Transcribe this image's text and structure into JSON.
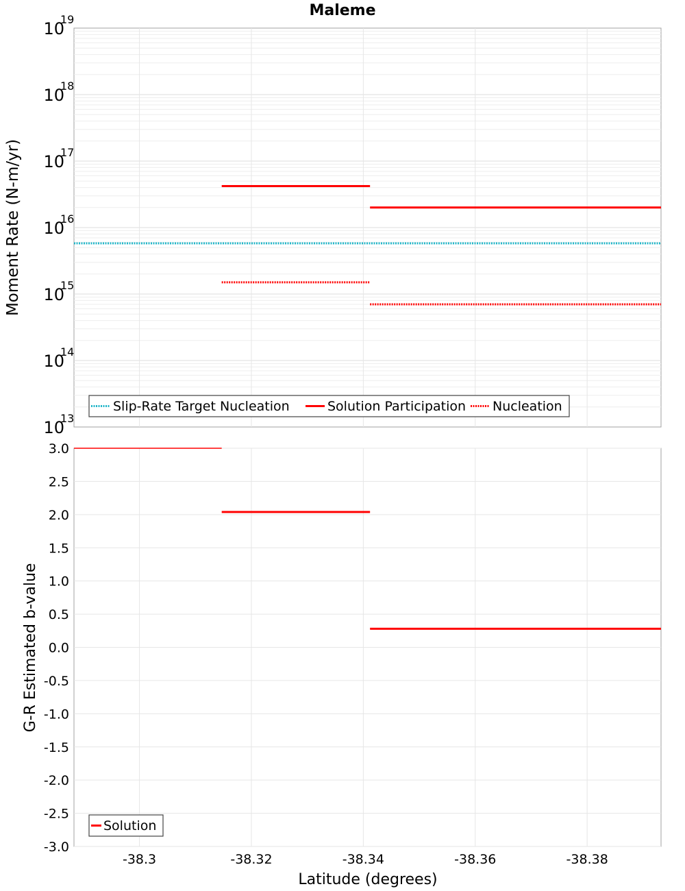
{
  "chart_data": [
    {
      "type": "line",
      "panel": "top",
      "title": "Maleme",
      "xlabel": "Latitude (degrees)",
      "ylabel": "Moment Rate (N-m/yr)",
      "yscale": "log",
      "ylim": [
        10000000000000.0,
        1e+19
      ],
      "xlim": [
        -38.2883,
        -38.3932
      ],
      "y_tick_exponents": [
        13,
        14,
        15,
        16,
        17,
        18,
        19
      ],
      "y_tick_base": "10",
      "grid": true,
      "legend_position": "bottom-left",
      "series": [
        {
          "name": "Slip-Rate Target Nucleation",
          "style": "dotted",
          "color": "#1fb5c8",
          "segments": [
            {
              "x": [
                -38.2883,
                -38.3932
              ],
              "y": 5800000000000000.0
            }
          ]
        },
        {
          "name": "Solution Participation",
          "style": "solid",
          "color": "#ff0000",
          "segments": [
            {
              "x": [
                -38.3147,
                -38.3412
              ],
              "y": 4.2e+16
            },
            {
              "x": [
                -38.3412,
                -38.3932
              ],
              "y": 2e+16
            }
          ]
        },
        {
          "name": "Nucleation",
          "style": "dotted",
          "color": "#ff0000",
          "segments": [
            {
              "x": [
                -38.3147,
                -38.3412
              ],
              "y": 1500000000000000.0
            },
            {
              "x": [
                -38.3412,
                -38.3932
              ],
              "y": 700000000000000.0
            }
          ]
        }
      ]
    },
    {
      "type": "line",
      "panel": "bottom",
      "xlabel": "Latitude (degrees)",
      "ylabel": "G-R Estimated b-value",
      "ylim": [
        -3.0,
        3.0
      ],
      "xlim": [
        -38.2883,
        -38.3932
      ],
      "x_ticks": [
        -38.3,
        -38.32,
        -38.34,
        -38.36,
        -38.38
      ],
      "x_tick_labels": [
        "-38.3",
        "-38.32",
        "-38.34",
        "-38.36",
        "-38.38"
      ],
      "y_ticks": [
        3.0,
        2.5,
        2.0,
        1.5,
        1.0,
        0.5,
        0.0,
        -0.5,
        -1.0,
        -1.5,
        -2.0,
        -2.5,
        -3.0
      ],
      "y_tick_labels": [
        "3.0",
        "2.5",
        "2.0",
        "1.5",
        "1.0",
        "0.5",
        "0.0",
        "-0.5",
        "-1.0",
        "-1.5",
        "-2.0",
        "-2.5",
        "-3.0"
      ],
      "grid": true,
      "legend_position": "bottom-left",
      "series": [
        {
          "name": "Solution",
          "style": "solid",
          "color": "#ff0000",
          "segments": [
            {
              "x": [
                -38.2883,
                -38.3147
              ],
              "y": 3.0,
              "thin": true
            },
            {
              "x": [
                -38.3147,
                -38.3412
              ],
              "y": 2.04
            },
            {
              "x": [
                -38.3412,
                -38.3932
              ],
              "y": 0.28
            }
          ]
        }
      ]
    }
  ]
}
